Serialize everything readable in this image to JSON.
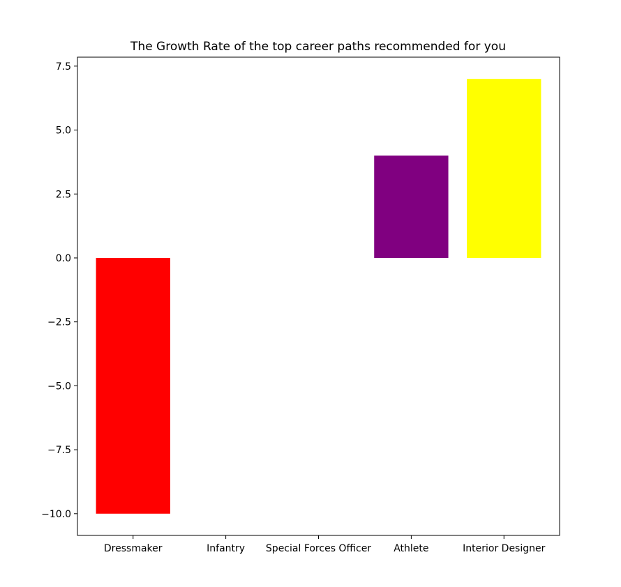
{
  "chart_data": {
    "type": "bar",
    "title": "The Growth Rate of the top career paths recommended for you",
    "xlabel": "",
    "ylabel": "",
    "categories": [
      "Dressmaker",
      "Infantry",
      "Special Forces Officer",
      "Athlete",
      "Interior Designer"
    ],
    "values": [
      -10,
      0,
      0,
      4,
      7
    ],
    "colors": [
      "#ff0000",
      "#ff0000",
      "#ff0000",
      "#800080",
      "#ffff00"
    ],
    "ylim": [
      -10.85,
      7.85
    ],
    "yticks": [
      -10.0,
      -7.5,
      -5.0,
      -2.5,
      0.0,
      2.5,
      5.0,
      7.5
    ],
    "ytick_labels": [
      "−10.0",
      "−7.5",
      "−5.0",
      "−2.5",
      "0.0",
      "2.5",
      "5.0",
      "7.5"
    ],
    "grid": false,
    "legend": "none"
  }
}
